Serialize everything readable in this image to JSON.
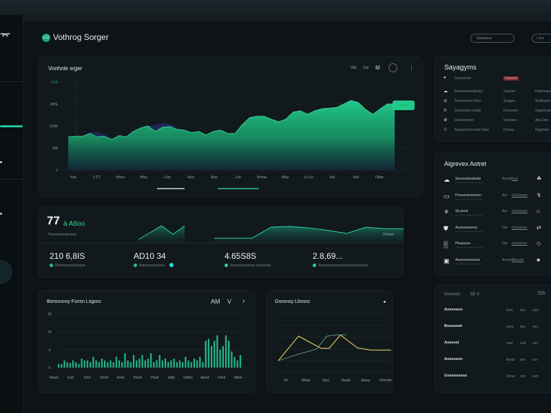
{
  "header": {
    "logo_text": "LO",
    "title": "Vothrog Sorger",
    "search_placeholder": "Searhnea",
    "button_label": "○ 6.rr"
  },
  "sidebar": {
    "items": [
      "home",
      "menu",
      "active",
      "dot",
      "settings",
      "profile"
    ]
  },
  "main_chart": {
    "title": "Vonhnle srger",
    "controls": [
      "We",
      "Ine",
      "M"
    ],
    "badge": "Mmme",
    "chart_data": {
      "type": "area",
      "y_tick_labels": [
        "0",
        "MB",
        "DOM",
        "MHE",
        "ASB"
      ],
      "ylim": [
        0,
        4
      ],
      "x_tick_labels": [
        "Yse",
        "J.T1",
        "Vbon",
        "Wsy",
        "J.bn",
        "Ison",
        "Bon",
        "J.tn",
        "Vrnna",
        "Wsy",
        "Ls.cn",
        "Ine",
        "Vlol",
        "Ober"
      ],
      "grid": true,
      "series": [
        {
          "color": "#1fb57a",
          "values": [
            1.5,
            1.53,
            1.53,
            1.66,
            1.5,
            1.53,
            1.38,
            1.56,
            1.5,
            1.75,
            1.91,
            2.0,
            1.75,
            1.94,
            1.97,
            1.84,
            1.81,
            1.69,
            1.75,
            1.59,
            1.75,
            1.81,
            1.66,
            1.66,
            2.06,
            2.38,
            2.44,
            2.44,
            2.31,
            2.19,
            2.31,
            2.63,
            2.69,
            2.53,
            2.69,
            2.78,
            2.81,
            2.84,
            3.0,
            3.16,
            3.06,
            2.75,
            2.53,
            2.78,
            3.0,
            3.0
          ]
        },
        {
          "color": "#1b2a55",
          "values": [
            1.5,
            1.53,
            1.53,
            1.72,
            1.72,
            1.6,
            1.45,
            1.56,
            1.5,
            1.75,
            1.91,
            2.0,
            2.05,
            2.12,
            2.1,
            1.9,
            1.81,
            1.69,
            1.75,
            1.59,
            1.75,
            1.81,
            1.66,
            1.66,
            2.06,
            2.38,
            2.44,
            2.44,
            2.31,
            2.19,
            2.31,
            2.63,
            2.69,
            2.53,
            2.69,
            2.78,
            2.81,
            2.84,
            3.0,
            3.16,
            3.06,
            2.75,
            2.53,
            2.78,
            3.0,
            3.0
          ]
        }
      ]
    }
  },
  "systems": {
    "title": "Sayagyms",
    "rows": [
      {
        "icon": "dot-icon",
        "name": "Cossonsm",
        "status": "Ovenon",
        "value": ""
      },
      {
        "icon": "cloud-icon",
        "name": "Bovonshonsbhasy",
        "status": "Oassno",
        "value": "Dsdsnsnon"
      },
      {
        "icon": "globe-icon",
        "name": "Snosssnod Orlon",
        "status": "Ssagon",
        "value": "Sadhonon"
      },
      {
        "icon": "refresh-icon",
        "name": "Dssosmen onsby",
        "status": "Dssosom",
        "value": "Sagnonsp"
      },
      {
        "icon": "gear-icon",
        "name": "Dsdsonsnon",
        "status": "Dsonsno",
        "value": "Asa Oon"
      },
      {
        "icon": "bulb-icon",
        "name": "Asaaomnt Inonsr bons",
        "status": "Dsrsas",
        "value": "Dsgnonn"
      }
    ]
  },
  "agents": {
    "title": "Algrevex Aotret",
    "rows": [
      {
        "name": "Senonstonsbobs",
        "meta": "Asnsd",
        "tag": "Ssd"
      },
      {
        "name": "Psnsonsnsonsnn",
        "meta": "Asi",
        "tag": "Osnsonon"
      },
      {
        "name": "Sb.asnd",
        "meta": "Asi",
        "tag": "Osnsonon"
      },
      {
        "name": "Asnsosnsonsy",
        "meta": "Osi",
        "tag": "Osnsonsn"
      },
      {
        "name": "Pbsasnon",
        "meta": "Osi",
        "tag": "Osnsnson"
      },
      {
        "name": "Asnsosnsnonsd",
        "meta": "Asnsno",
        "tag": "Osnsnd"
      }
    ]
  },
  "kpis": {
    "headline": "77",
    "headline_sub": "à A6oo",
    "headline_caption": "Pasnsnsonsnnsnp",
    "side_label": "Osnsnr",
    "items": [
      {
        "value": "210 6,8IS",
        "caption": "Pbsnsnsnonsnonsd"
      },
      {
        "value": "AD10 34",
        "caption": "Afsnsnsnonsnon"
      },
      {
        "value": "4.65S8S",
        "caption": "Ssnsnsnsmsnsn.ssnsnnsd"
      },
      {
        "value": "2.8,69...",
        "caption": "Ssnsnsnsnsnsnsnsnsnsnsnsnsd"
      }
    ],
    "spark1": [
      0.2,
      0.6,
      1.0,
      0.5,
      1.0
    ],
    "spark2": [
      0.3,
      0.3,
      0.3,
      1.0,
      1.05,
      0.95,
      0.8,
      0.6,
      1.0,
      0.9,
      0.9
    ]
  },
  "bar_chart": {
    "title": "Bsnsnsnsy Fsnsn Lsgosc",
    "controls": [
      "AM",
      "V",
      "›"
    ],
    "chart_data": {
      "type": "bar",
      "y_tick_labels": [
        "0",
        "d",
        "20",
        "30"
      ],
      "ylim": [
        0,
        3
      ],
      "x_tick_labels": [
        "Hesd",
        "Carl",
        "Dsrt",
        "Onsf",
        "Ioslc",
        "Fbsrt",
        "Thsd",
        "Iabk",
        "Isdbn",
        "Aasd",
        "Osnl",
        "Aklsr"
      ],
      "values": [
        0.2,
        0.2,
        0.4,
        0.3,
        0.25,
        0.4,
        0.3,
        0.2,
        0.5,
        0.4,
        0.4,
        0.3,
        0.6,
        0.4,
        0.3,
        0.5,
        0.4,
        0.3,
        0.4,
        0.3,
        0.6,
        0.4,
        0.3,
        0.8,
        0.4,
        0.3,
        0.7,
        0.4,
        0.5,
        0.7,
        0.4,
        0.5,
        0.8,
        0.3,
        0.4,
        0.7,
        0.4,
        0.5,
        0.3,
        0.4,
        0.5,
        0.3,
        0.4,
        0.3,
        0.6,
        0.4,
        0.3,
        0.5,
        0.4,
        0.6,
        0.3,
        1.5,
        1.6,
        1.2,
        1.5,
        1.8,
        1.0,
        1.2,
        1.8,
        1.5,
        0.9,
        0.6,
        0.4,
        0.7
      ]
    }
  },
  "line_chart": {
    "title": "Gsnsnsy Lbssnc",
    "chart_data": {
      "type": "line",
      "ylim": [
        0,
        5
      ],
      "x_tick_labels": [
        "Hi",
        "Meat",
        "Qsy",
        "Ssad",
        "Awsy",
        "Pbrnhe"
      ],
      "grid": true,
      "series": [
        {
          "color": "#d9c85a",
          "x": [
            0,
            0.18,
            0.38,
            0.45,
            0.55,
            0.7,
            0.82,
            1.0
          ],
          "values": [
            1.0,
            3.1,
            2.05,
            2.05,
            3.2,
            2.1,
            1.9,
            1.9
          ]
        },
        {
          "color": "#5fae7a",
          "x": [
            0,
            0.16,
            0.34,
            0.43,
            0.52,
            0.6
          ],
          "values": [
            1.0,
            1.5,
            2.0,
            3.1,
            3.2,
            3.2
          ]
        }
      ]
    }
  },
  "right_table": {
    "header": [
      "Ssnsnsn",
      "Mi’ V"
    ],
    "header_right": "OS",
    "rows": [
      [
        "Asnsnsno",
        "bsnt",
        "ssn",
        "vsst"
      ],
      [
        "Bssnsnsh",
        "ssnn",
        "bsn",
        "ssn"
      ],
      [
        "Asnsnsl",
        "osnt",
        "vssl",
        "ssn"
      ],
      [
        "Asnsnsnn",
        "Asnsr",
        "ssn",
        "vsn"
      ],
      [
        "Gsnsnsnsns",
        "Ssnsr",
        "ssn",
        "vsm"
      ]
    ]
  }
}
